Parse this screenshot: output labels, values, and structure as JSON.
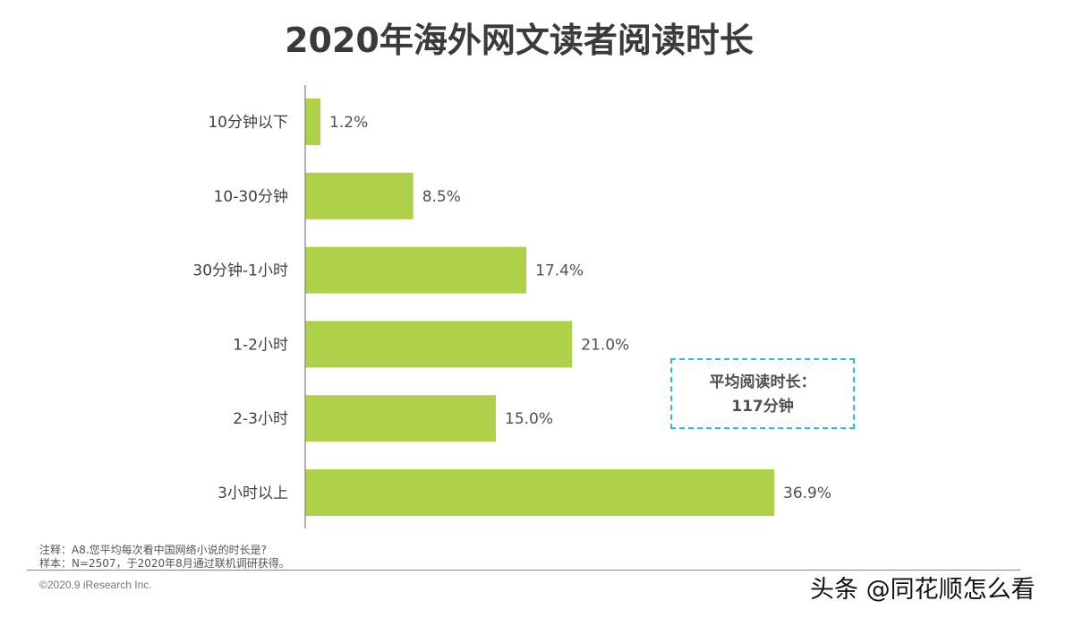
{
  "chart_data": {
    "type": "bar",
    "orientation": "horizontal",
    "title": "2020年海外网文读者阅读时长",
    "categories": [
      "10分钟以下",
      "10-30分钟",
      "30分钟-1小时",
      "1-2小时",
      "2-3小时",
      "3小时以上"
    ],
    "values": [
      1.2,
      8.5,
      17.4,
      21.0,
      15.0,
      36.9
    ],
    "data_labels": [
      "1.2%",
      "8.5%",
      "17.4%",
      "21.0%",
      "15.0%",
      "36.9%"
    ],
    "unit": "%",
    "bar_color": "#afd14a",
    "grid": false,
    "annotation": {
      "line1": "平均阅读时长：",
      "line2": "117分钟",
      "border_color": "#2bbfdc"
    }
  },
  "footer": {
    "note": "注释：A8.您平均每次看中国网络小说的时长是?",
    "sample": "样本：N=2507，于2020年8月通过联机调研获得。",
    "copyright": "©2020.9 iResearch Inc.",
    "watermark": "头条 @同花顺怎么看"
  }
}
